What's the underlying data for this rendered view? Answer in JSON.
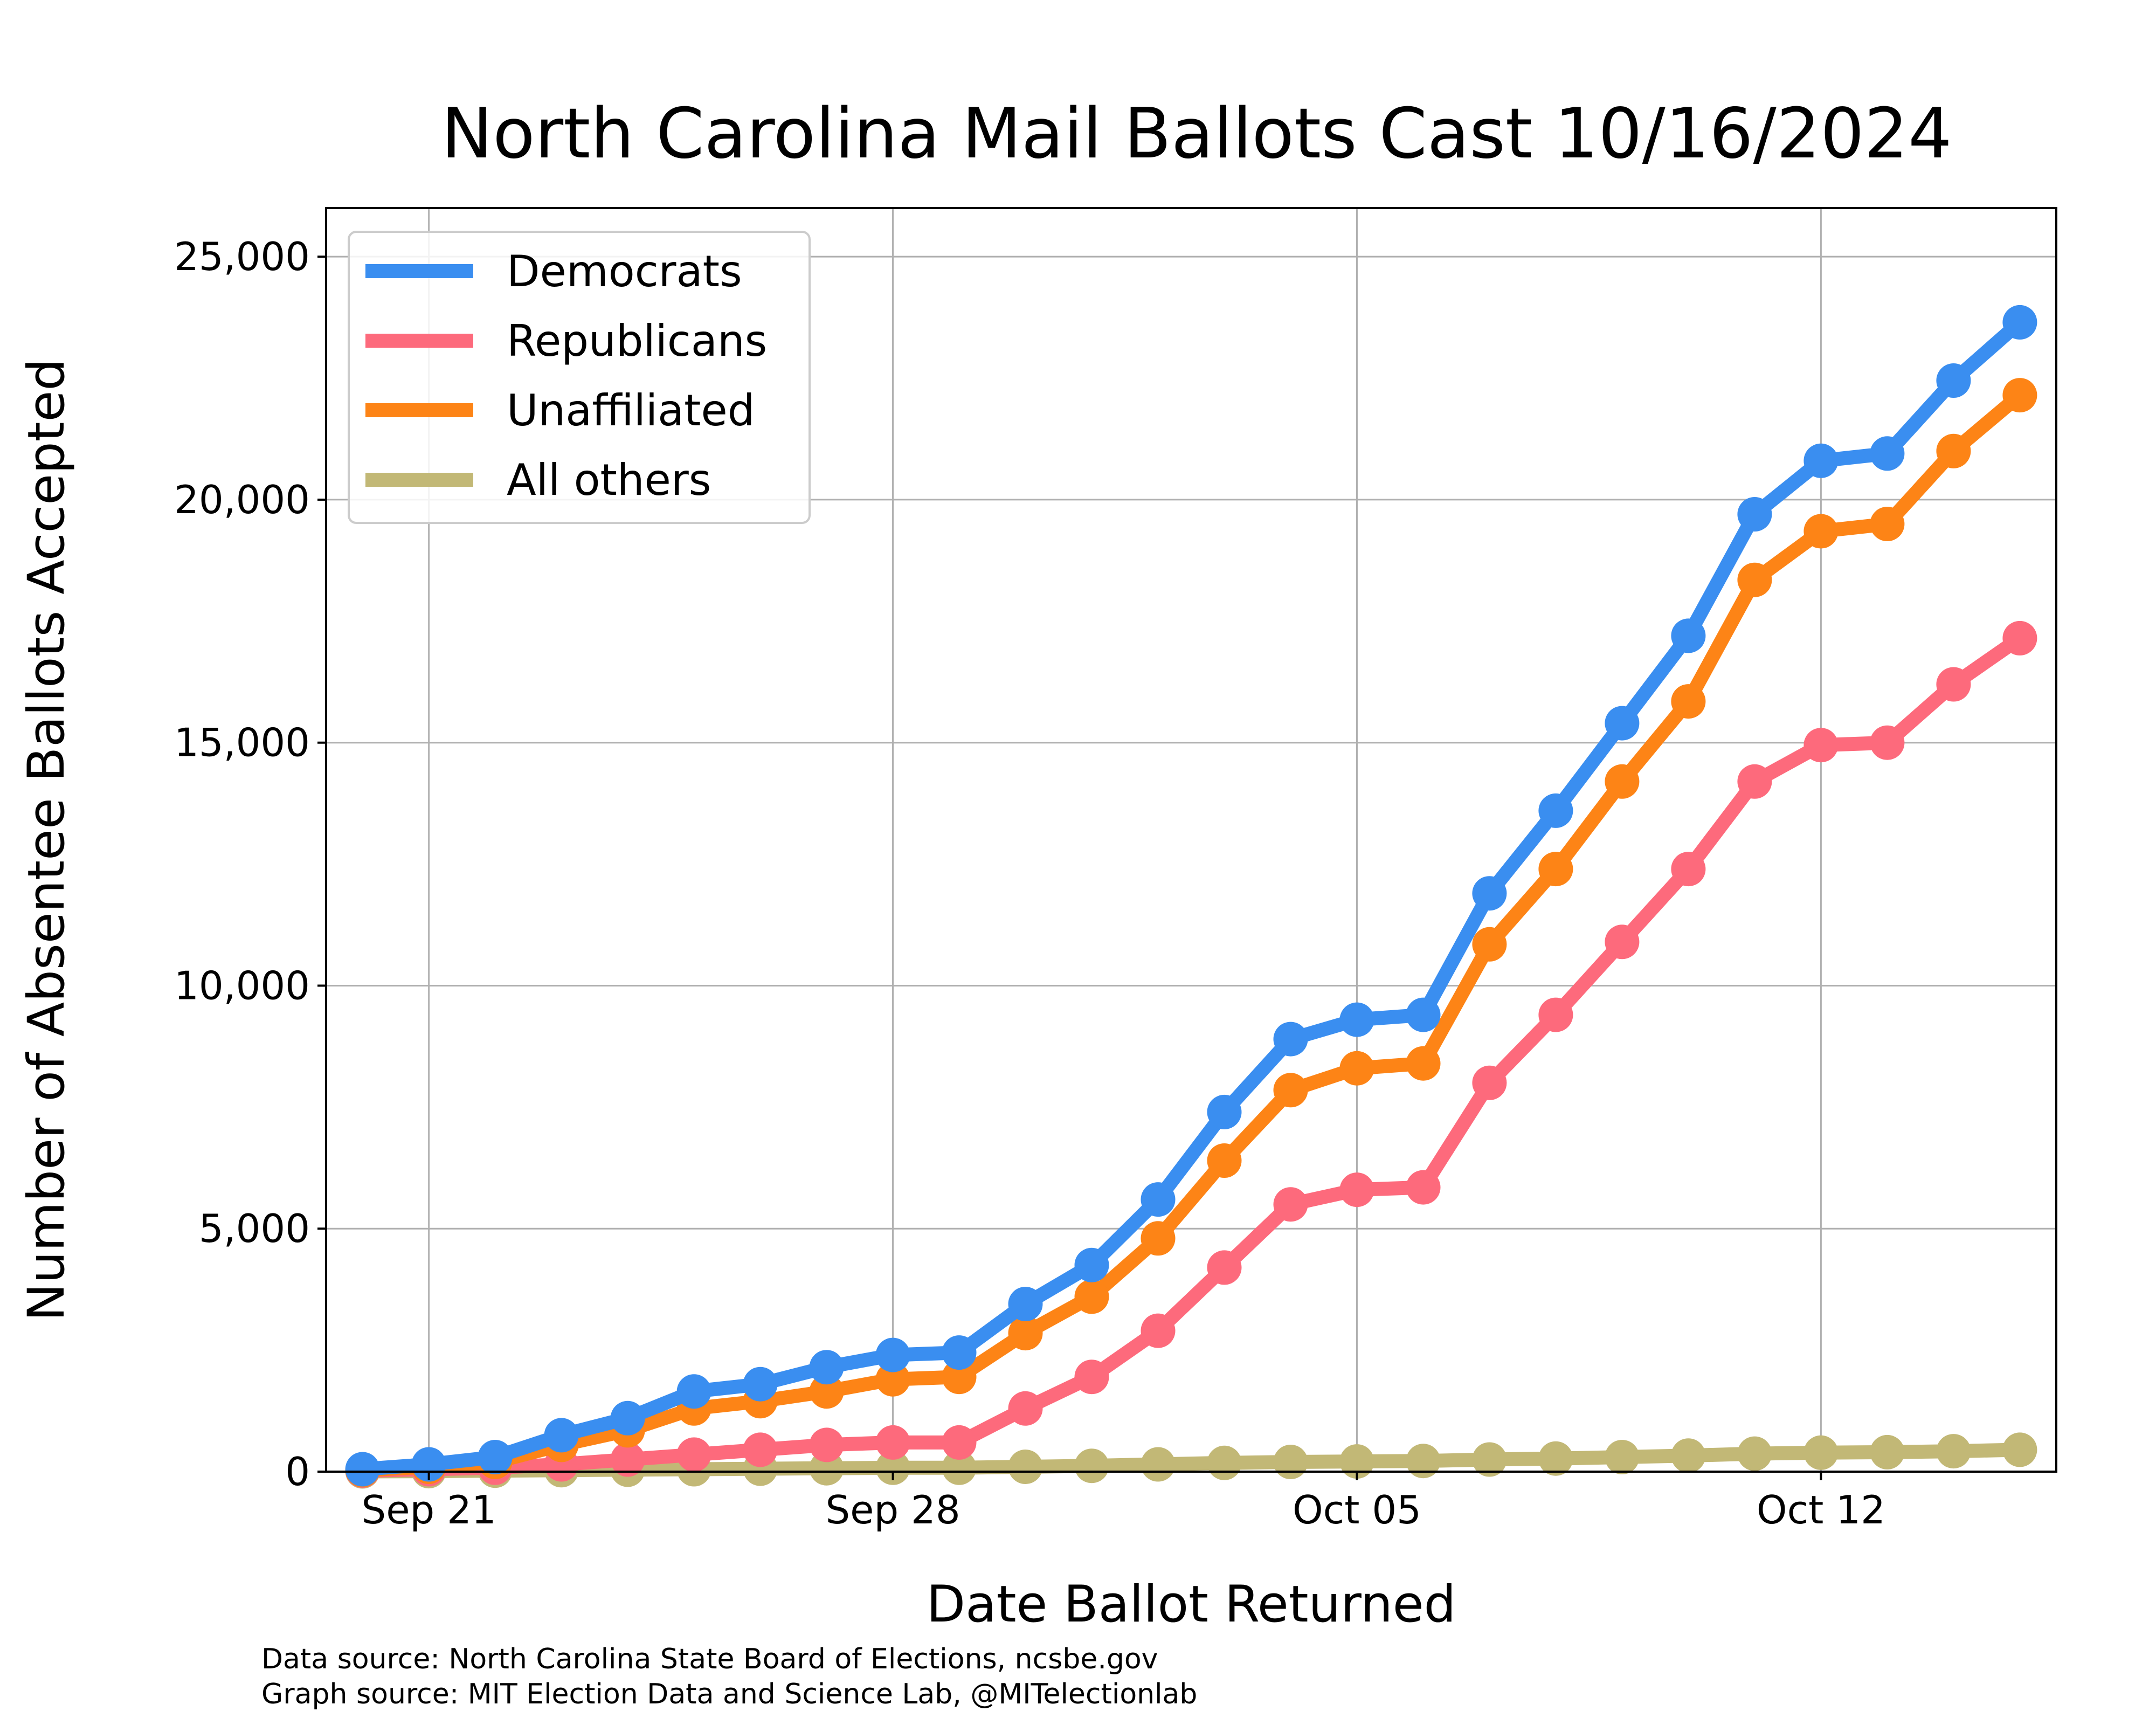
{
  "chart_data": {
    "type": "line",
    "title": "North Carolina Mail Ballots Cast 10/16/2024",
    "xlabel": "Date Ballot Returned",
    "ylabel": "Number of Absentee Ballots Accepted",
    "x": [
      "2024-09-20",
      "2024-09-21",
      "2024-09-22",
      "2024-09-23",
      "2024-09-24",
      "2024-09-25",
      "2024-09-26",
      "2024-09-27",
      "2024-09-28",
      "2024-09-29",
      "2024-09-30",
      "2024-10-01",
      "2024-10-02",
      "2024-10-03",
      "2024-10-04",
      "2024-10-05",
      "2024-10-06",
      "2024-10-07",
      "2024-10-08",
      "2024-10-09",
      "2024-10-10",
      "2024-10-11",
      "2024-10-12",
      "2024-10-13",
      "2024-10-14",
      "2024-10-15"
    ],
    "x_ticks": [
      {
        "date": "2024-09-21",
        "label": "Sep 21"
      },
      {
        "date": "2024-09-28",
        "label": "Sep 28"
      },
      {
        "date": "2024-10-05",
        "label": "Oct 05"
      },
      {
        "date": "2024-10-12",
        "label": "Oct 12"
      }
    ],
    "ylim": [
      0,
      26000
    ],
    "y_ticks": [
      {
        "value": 0,
        "label": "0"
      },
      {
        "value": 5000,
        "label": "5,000"
      },
      {
        "value": 10000,
        "label": "10,000"
      },
      {
        "value": 15000,
        "label": "15,000"
      },
      {
        "value": 20000,
        "label": "20,000"
      },
      {
        "value": 25000,
        "label": "25,000"
      }
    ],
    "grid": true,
    "legend_position": "top-left",
    "series": [
      {
        "name": "Democrats",
        "color": "#3a8ef0",
        "values": [
          50,
          150,
          300,
          750,
          1100,
          1650,
          1800,
          2150,
          2400,
          2450,
          3450,
          4250,
          5600,
          7400,
          8900,
          9300,
          9400,
          11900,
          13600,
          15400,
          17200,
          19700,
          20800,
          20950,
          22450,
          23650
        ]
      },
      {
        "name": "Republicans",
        "color": "#fd6a7c",
        "values": [
          20,
          50,
          80,
          150,
          250,
          350,
          450,
          550,
          600,
          600,
          1300,
          1950,
          2900,
          4200,
          5500,
          5800,
          5850,
          8000,
          9400,
          10900,
          12400,
          14200,
          14950,
          15000,
          16200,
          17150
        ]
      },
      {
        "name": "Unaffiliated",
        "color": "#fd8416",
        "values": [
          30,
          100,
          200,
          550,
          850,
          1300,
          1450,
          1650,
          1900,
          1950,
          2850,
          3600,
          4800,
          6400,
          7850,
          8300,
          8400,
          10850,
          12400,
          14200,
          15850,
          18350,
          19350,
          19500,
          21000,
          22150
        ]
      },
      {
        "name": "All others",
        "color": "#c2b876",
        "values": [
          5,
          10,
          20,
          30,
          40,
          50,
          60,
          70,
          80,
          80,
          100,
          120,
          150,
          180,
          200,
          210,
          220,
          250,
          270,
          300,
          330,
          370,
          390,
          400,
          420,
          450
        ]
      }
    ],
    "source_lines": [
      "Data source: North Carolina State Board of Elections, ncsbe.gov",
      "Graph source: MIT Election Data and Science Lab, @MITelectionlab"
    ]
  }
}
